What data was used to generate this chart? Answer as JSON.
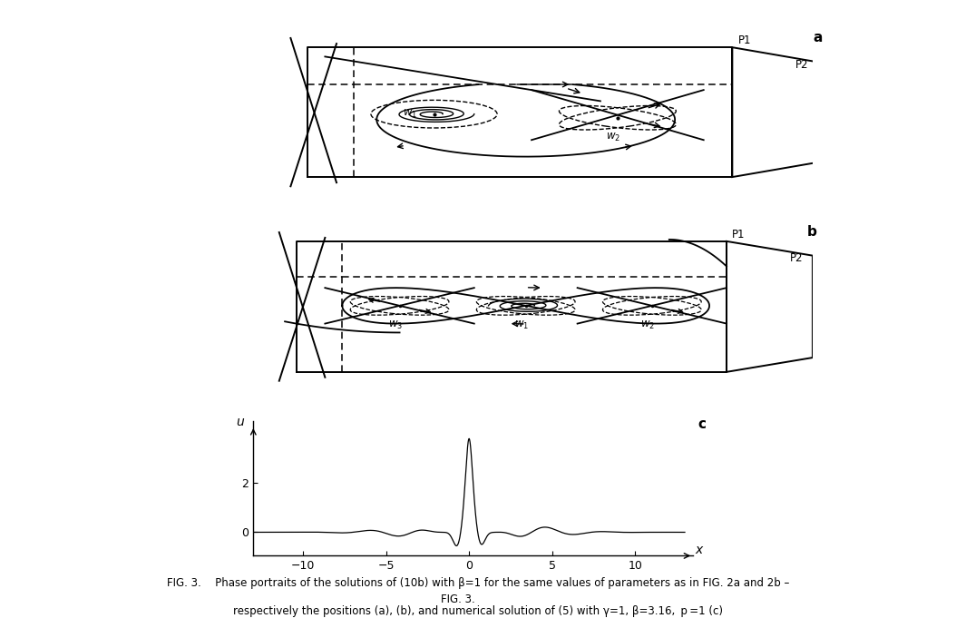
{
  "caption_normal": "FIG. 3. ",
  "caption_bold": "Phase portraits of the solutions of (10b) with β=1 for the same values of parameters as in FIG. 2a and 2b –",
  "caption_line2": "respectively the positions (a), (b",
  "caption_line2b": "),",
  "caption_line2c": " and numerical solution of (5) with γ=1, β=3.16, ",
  "caption_line2d": "p",
  "caption_line2e": "=1 (c)",
  "panel_a_label": "a",
  "panel_b_label": "b",
  "panel_c_label": "c",
  "P1_label": "P1",
  "P2_label": "P2",
  "w1_label": "w",
  "w2_label": "w",
  "w3_label": "w",
  "xlabel": "x",
  "ylabel": "u",
  "xticks": [
    -10,
    -5,
    0,
    5,
    10
  ],
  "yticks": [
    0,
    2
  ],
  "background_color": "#ffffff",
  "line_color": "#000000"
}
